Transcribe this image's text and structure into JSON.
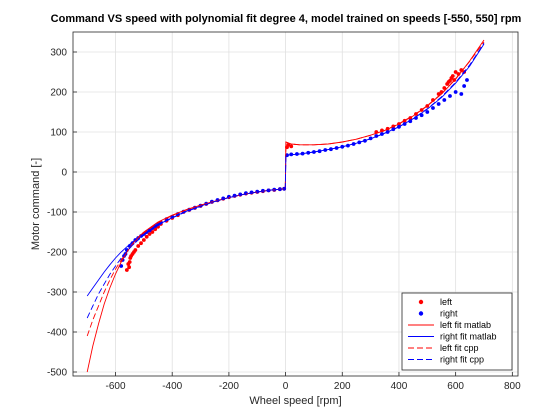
{
  "chart_data": {
    "type": "scatter",
    "title": "Command VS speed with polynomial fit degree 4, model trained on speeds [-550, 550] rpm",
    "xlabel": "Wheel speed [rpm]",
    "ylabel": "Motor command [-]",
    "xlim": [
      -750,
      820
    ],
    "ylim": [
      -510,
      350
    ],
    "xticks": [
      -600,
      -400,
      -200,
      0,
      200,
      400,
      600,
      800
    ],
    "yticks": [
      -500,
      -400,
      -300,
      -200,
      -100,
      0,
      100,
      200,
      300
    ],
    "grid": true,
    "legend_position": "bottom-right",
    "colors": {
      "left": "#ff0000",
      "right": "#0000ff"
    },
    "series": [
      {
        "name": "left",
        "kind": "scatter",
        "color": "#ff0000",
        "points": [
          [
            -560,
            -245
          ],
          [
            -555,
            -230
          ],
          [
            -550,
            -225
          ],
          [
            -552,
            -238
          ],
          [
            -548,
            -215
          ],
          [
            -545,
            -210
          ],
          [
            -540,
            -205
          ],
          [
            -535,
            -200
          ],
          [
            -530,
            -195
          ],
          [
            -520,
            -185
          ],
          [
            -510,
            -178
          ],
          [
            -500,
            -170
          ],
          [
            -490,
            -162
          ],
          [
            -480,
            -155
          ],
          [
            -470,
            -150
          ],
          [
            -460,
            -143
          ],
          [
            -450,
            -137
          ],
          [
            -440,
            -130
          ],
          [
            -420,
            -122
          ],
          [
            -400,
            -115
          ],
          [
            -380,
            -108
          ],
          [
            -360,
            -100
          ],
          [
            -340,
            -95
          ],
          [
            -320,
            -90
          ],
          [
            -300,
            -85
          ],
          [
            -280,
            -80
          ],
          [
            -260,
            -75
          ],
          [
            -240,
            -71
          ],
          [
            -220,
            -67
          ],
          [
            -200,
            -63
          ],
          [
            -180,
            -60
          ],
          [
            -160,
            -57
          ],
          [
            -140,
            -54
          ],
          [
            -120,
            -52
          ],
          [
            -100,
            -50
          ],
          [
            -80,
            -48
          ],
          [
            -60,
            -46
          ],
          [
            -40,
            -45
          ],
          [
            -20,
            -43
          ],
          [
            -5,
            -42
          ],
          [
            5,
            62
          ],
          [
            10,
            68
          ],
          [
            20,
            64
          ],
          [
            320,
            100
          ],
          [
            340,
            104
          ],
          [
            360,
            108
          ],
          [
            380,
            114
          ],
          [
            400,
            120
          ],
          [
            420,
            128
          ],
          [
            440,
            135
          ],
          [
            460,
            145
          ],
          [
            480,
            155
          ],
          [
            500,
            165
          ],
          [
            520,
            180
          ],
          [
            540,
            195
          ],
          [
            550,
            200
          ],
          [
            560,
            210
          ],
          [
            570,
            220
          ],
          [
            580,
            228
          ],
          [
            590,
            240
          ],
          [
            600,
            250
          ],
          [
            610,
            245
          ],
          [
            620,
            255
          ],
          [
            630,
            250
          ],
          [
            575,
            225
          ],
          [
            585,
            235
          ],
          [
            595,
            230
          ]
        ]
      },
      {
        "name": "right",
        "kind": "scatter",
        "color": "#0000ff",
        "points": [
          [
            -580,
            -235
          ],
          [
            -575,
            -220
          ],
          [
            -570,
            -210
          ],
          [
            -565,
            -205
          ],
          [
            -560,
            -195
          ],
          [
            -550,
            -185
          ],
          [
            -540,
            -178
          ],
          [
            -530,
            -170
          ],
          [
            -520,
            -165
          ],
          [
            -510,
            -160
          ],
          [
            -500,
            -155
          ],
          [
            -490,
            -150
          ],
          [
            -480,
            -146
          ],
          [
            -470,
            -140
          ],
          [
            -460,
            -135
          ],
          [
            -450,
            -130
          ],
          [
            -440,
            -126
          ],
          [
            -420,
            -118
          ],
          [
            -400,
            -112
          ],
          [
            -380,
            -105
          ],
          [
            -360,
            -99
          ],
          [
            -340,
            -94
          ],
          [
            -320,
            -89
          ],
          [
            -300,
            -84
          ],
          [
            -280,
            -79
          ],
          [
            -260,
            -74
          ],
          [
            -240,
            -70
          ],
          [
            -220,
            -66
          ],
          [
            -200,
            -62
          ],
          [
            -180,
            -59
          ],
          [
            -160,
            -56
          ],
          [
            -140,
            -53
          ],
          [
            -120,
            -51
          ],
          [
            -100,
            -49
          ],
          [
            -80,
            -47
          ],
          [
            -60,
            -46
          ],
          [
            -40,
            -44
          ],
          [
            -20,
            -43
          ],
          [
            -5,
            -42
          ],
          [
            5,
            42
          ],
          [
            20,
            44
          ],
          [
            40,
            45
          ],
          [
            60,
            46
          ],
          [
            80,
            48
          ],
          [
            100,
            50
          ],
          [
            120,
            52
          ],
          [
            140,
            55
          ],
          [
            160,
            57
          ],
          [
            180,
            60
          ],
          [
            200,
            63
          ],
          [
            220,
            66
          ],
          [
            240,
            70
          ],
          [
            260,
            74
          ],
          [
            280,
            78
          ],
          [
            300,
            84
          ],
          [
            320,
            90
          ],
          [
            340,
            95
          ],
          [
            360,
            100
          ],
          [
            380,
            107
          ],
          [
            400,
            113
          ],
          [
            420,
            120
          ],
          [
            440,
            127
          ],
          [
            460,
            135
          ],
          [
            480,
            142
          ],
          [
            500,
            150
          ],
          [
            520,
            160
          ],
          [
            540,
            170
          ],
          [
            560,
            180
          ],
          [
            580,
            190
          ],
          [
            600,
            200
          ],
          [
            620,
            195
          ],
          [
            630,
            215
          ],
          [
            640,
            230
          ]
        ]
      },
      {
        "name": "left fit matlab",
        "kind": "line",
        "color": "#ff0000",
        "dash": false,
        "points": [
          [
            -700,
            -500
          ],
          [
            -680,
            -435
          ],
          [
            -660,
            -380
          ],
          [
            -640,
            -330
          ],
          [
            -620,
            -290
          ],
          [
            -600,
            -255
          ],
          [
            -580,
            -225
          ],
          [
            -560,
            -200
          ],
          [
            -540,
            -180
          ],
          [
            -520,
            -163
          ],
          [
            -500,
            -150
          ],
          [
            -450,
            -125
          ],
          [
            -400,
            -108
          ],
          [
            -350,
            -94
          ],
          [
            -300,
            -83
          ],
          [
            -250,
            -73
          ],
          [
            -200,
            -64
          ],
          [
            -150,
            -56
          ],
          [
            -100,
            -50
          ],
          [
            -50,
            -45
          ],
          [
            -1,
            -42
          ],
          [
            1,
            75
          ],
          [
            20,
            70
          ],
          [
            50,
            68
          ],
          [
            100,
            68
          ],
          [
            150,
            70
          ],
          [
            200,
            75
          ],
          [
            250,
            82
          ],
          [
            300,
            92
          ],
          [
            350,
            104
          ],
          [
            400,
            120
          ],
          [
            450,
            140
          ],
          [
            500,
            165
          ],
          [
            550,
            195
          ],
          [
            600,
            232
          ],
          [
            650,
            278
          ],
          [
            700,
            330
          ]
        ]
      },
      {
        "name": "right fit matlab",
        "kind": "line",
        "color": "#0000ff",
        "dash": false,
        "points": [
          [
            -700,
            -310
          ],
          [
            -680,
            -290
          ],
          [
            -660,
            -270
          ],
          [
            -640,
            -250
          ],
          [
            -620,
            -232
          ],
          [
            -600,
            -215
          ],
          [
            -580,
            -200
          ],
          [
            -560,
            -187
          ],
          [
            -540,
            -175
          ],
          [
            -520,
            -164
          ],
          [
            -500,
            -154
          ],
          [
            -450,
            -132
          ],
          [
            -400,
            -114
          ],
          [
            -350,
            -98
          ],
          [
            -300,
            -85
          ],
          [
            -250,
            -74
          ],
          [
            -200,
            -64
          ],
          [
            -150,
            -56
          ],
          [
            -100,
            -50
          ],
          [
            -50,
            -45
          ],
          [
            -1,
            -42
          ],
          [
            1,
            42
          ],
          [
            50,
            45
          ],
          [
            100,
            50
          ],
          [
            150,
            56
          ],
          [
            200,
            63
          ],
          [
            250,
            72
          ],
          [
            300,
            83
          ],
          [
            350,
            97
          ],
          [
            400,
            113
          ],
          [
            450,
            133
          ],
          [
            500,
            157
          ],
          [
            550,
            186
          ],
          [
            600,
            222
          ],
          [
            650,
            265
          ],
          [
            700,
            320
          ]
        ]
      },
      {
        "name": "left fit cpp",
        "kind": "line",
        "color": "#ff0000",
        "dash": true,
        "points": [
          [
            -700,
            -410
          ],
          [
            -680,
            -370
          ],
          [
            -660,
            -335
          ],
          [
            -640,
            -300
          ],
          [
            -620,
            -270
          ],
          [
            -600,
            -243
          ],
          [
            -580,
            -220
          ],
          [
            -560,
            -200
          ],
          [
            -540,
            -181
          ],
          [
            -520,
            -165
          ],
          [
            -500,
            -152
          ],
          [
            -450,
            -127
          ],
          [
            -400,
            -109
          ],
          [
            -350,
            -95
          ],
          [
            -300,
            -83
          ],
          [
            -250,
            -73
          ],
          [
            -200,
            -64
          ],
          [
            -150,
            -56
          ],
          [
            -100,
            -50
          ],
          [
            -50,
            -45
          ],
          [
            -1,
            -42
          ],
          [
            1,
            75
          ],
          [
            20,
            70
          ],
          [
            50,
            68
          ],
          [
            100,
            68
          ],
          [
            150,
            70
          ],
          [
            200,
            75
          ],
          [
            250,
            82
          ],
          [
            300,
            92
          ],
          [
            350,
            104
          ],
          [
            400,
            121
          ],
          [
            450,
            141
          ],
          [
            500,
            166
          ],
          [
            550,
            196
          ],
          [
            600,
            233
          ],
          [
            650,
            277
          ],
          [
            700,
            325
          ]
        ]
      },
      {
        "name": "right fit cpp",
        "kind": "line",
        "color": "#0000ff",
        "dash": true,
        "points": [
          [
            -700,
            -365
          ],
          [
            -680,
            -335
          ],
          [
            -660,
            -305
          ],
          [
            -640,
            -280
          ],
          [
            -620,
            -256
          ],
          [
            -600,
            -235
          ],
          [
            -580,
            -215
          ],
          [
            -560,
            -198
          ],
          [
            -540,
            -183
          ],
          [
            -520,
            -170
          ],
          [
            -500,
            -158
          ],
          [
            -450,
            -134
          ],
          [
            -400,
            -115
          ],
          [
            -350,
            -99
          ],
          [
            -300,
            -86
          ],
          [
            -250,
            -74
          ],
          [
            -200,
            -64
          ],
          [
            -150,
            -56
          ],
          [
            -100,
            -50
          ],
          [
            -50,
            -45
          ],
          [
            -1,
            -42
          ],
          [
            1,
            42
          ],
          [
            50,
            45
          ],
          [
            100,
            50
          ],
          [
            150,
            56
          ],
          [
            200,
            63
          ],
          [
            250,
            72
          ],
          [
            300,
            83
          ],
          [
            350,
            97
          ],
          [
            400,
            113
          ],
          [
            450,
            133
          ],
          [
            500,
            158
          ],
          [
            550,
            188
          ],
          [
            600,
            224
          ],
          [
            650,
            268
          ],
          [
            700,
            322
          ]
        ]
      }
    ]
  }
}
